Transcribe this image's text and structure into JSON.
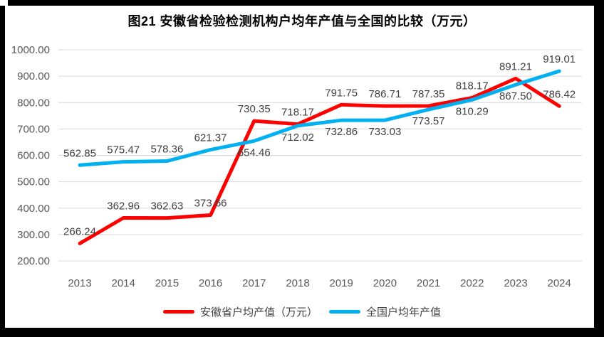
{
  "title": "图21 安徽省检验检测机构户均年产值与全国的比较（万元）",
  "colors": {
    "anhui_line": "#FF0000",
    "national_line": "#00B0F0",
    "gridline": "#D9D9D9",
    "axis_text": "#595959",
    "data_label_text": "#404040",
    "frame": "#000000",
    "background": "#FFFFFF"
  },
  "chart_data": {
    "type": "line",
    "title": "图21 安徽省检验检测机构户均年产值与全国的比较（万元）",
    "xlabel": "",
    "ylabel": "",
    "grid": true,
    "legend_position": "bottom",
    "ylim": [
      200,
      1000
    ],
    "categories": [
      "2013",
      "2014",
      "2015",
      "2016",
      "2017",
      "2018",
      "2019",
      "2020",
      "2021",
      "2022",
      "2023",
      "2024"
    ],
    "yticks": [
      {
        "value": 1000,
        "label": "1000.00"
      },
      {
        "value": 900,
        "label": "900.00"
      },
      {
        "value": 800,
        "label": "800.00"
      },
      {
        "value": 700,
        "label": "700.00"
      },
      {
        "value": 600,
        "label": "600.00"
      },
      {
        "value": 500,
        "label": "500.00"
      },
      {
        "value": 400,
        "label": "400.00"
      },
      {
        "value": 300,
        "label": "300.00"
      },
      {
        "value": 200,
        "label": "200.00"
      }
    ],
    "series": [
      {
        "id": "anhui",
        "name": "安徽省户均产值（万元）",
        "color": "#FF0000",
        "values": [
          266.24,
          362.96,
          362.63,
          373.66,
          730.35,
          718.17,
          791.75,
          786.71,
          787.35,
          818.17,
          891.21,
          786.42
        ],
        "label_side": [
          "above",
          "above",
          "above",
          "above",
          "above",
          "above",
          "above",
          "above",
          "above",
          "above",
          "above",
          "above"
        ]
      },
      {
        "id": "national",
        "name": "全国户均年产值",
        "color": "#00B0F0",
        "values": [
          562.85,
          575.47,
          578.36,
          621.37,
          654.46,
          712.02,
          732.86,
          733.03,
          773.57,
          810.29,
          867.5,
          919.01
        ],
        "label_side": [
          "above",
          "above",
          "above",
          "above",
          "below",
          "below",
          "below",
          "below",
          "below",
          "below",
          "below",
          "above"
        ]
      }
    ],
    "label_format": "0.00"
  }
}
